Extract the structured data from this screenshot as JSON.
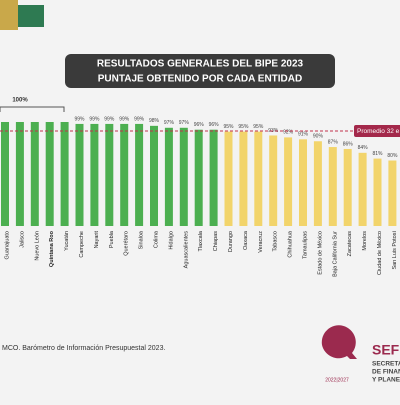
{
  "chart_data": {
    "type": "bar",
    "title": "RESULTADOS GENERALES DEL BIPE 2023",
    "subtitle": "PUNTAJE OBTENIDO POR CADA ENTIDAD",
    "categories": [
      "Guanajuato",
      "Jalisco",
      "Nuevo León",
      "Quintana Roo",
      "Yucatán",
      "Campeche",
      "Nayarit",
      "Puebla",
      "Querétaro",
      "Sinaloa",
      "Colima",
      "Hidalgo",
      "Aguascalientes",
      "Tlaxcala",
      "Chiapas",
      "Durango",
      "Oaxaca",
      "Veracruz",
      "Tabasco",
      "Chihuahua",
      "Tamaulipas",
      "Estado de México",
      "Baja California Sur",
      "Zacatecas",
      "Morelos",
      "Ciudad de México",
      "San Luis Potosí"
    ],
    "values": [
      100,
      100,
      100,
      100,
      100,
      99,
      99,
      99,
      99,
      99,
      98,
      97,
      97,
      96,
      96,
      95,
      95,
      95,
      93,
      92,
      91,
      90,
      87,
      86,
      84,
      81,
      80
    ],
    "value_labels": [
      null,
      null,
      null,
      null,
      null,
      "99%",
      "99%",
      "99%",
      "99%",
      "99%",
      "98%",
      "97%",
      "97%",
      "96%",
      "96%",
      "95%",
      "95%",
      "95%",
      "93%",
      "92%",
      "91%",
      "90%",
      "87%",
      "86%",
      "84%",
      "81%",
      "80%"
    ],
    "colors": [
      "#4caf50",
      "#4caf50",
      "#4caf50",
      "#4caf50",
      "#4caf50",
      "#4caf50",
      "#4caf50",
      "#4caf50",
      "#4caf50",
      "#4caf50",
      "#4caf50",
      "#4caf50",
      "#4caf50",
      "#4caf50",
      "#4caf50",
      "#f2d46b",
      "#f2d46b",
      "#f2d46b",
      "#f2d46b",
      "#f2d46b",
      "#f2d46b",
      "#f2d46b",
      "#f2d46b",
      "#f2d46b",
      "#f2d46b",
      "#f2d46b",
      "#f2d46b"
    ],
    "group_label": "100%",
    "average": 95.3,
    "average_label": "Promedio 32 e",
    "ylim": [
      46,
      100
    ],
    "source": "MCO. Barómetro de Información Presupuestal 2023.",
    "logo": {
      "name": "SEF",
      "lines": [
        "SECRETA",
        "DE FINAN",
        "Y PLANEA"
      ],
      "years": "2022|2027"
    }
  }
}
